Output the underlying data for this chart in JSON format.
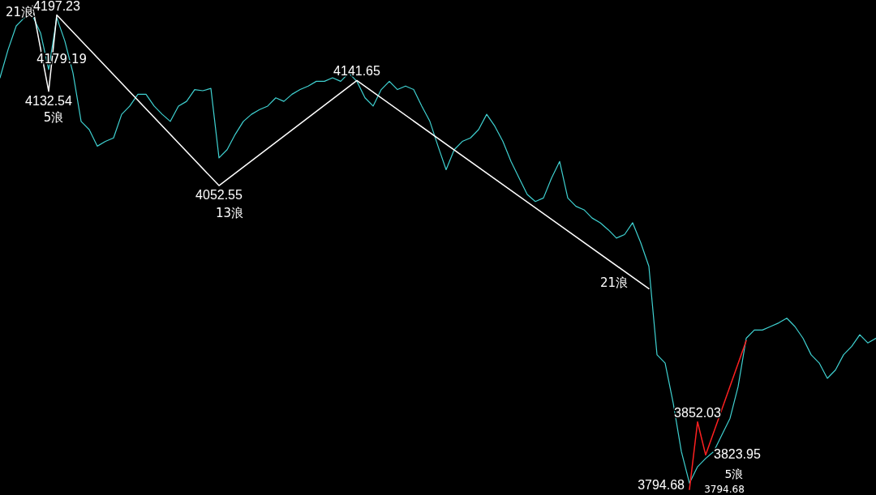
{
  "chart_data": {
    "type": "line",
    "categories": [
      null,
      null,
      null,
      null,
      null,
      null,
      null,
      null,
      null,
      null,
      null,
      null,
      null,
      null,
      null,
      null,
      null,
      null,
      null,
      null,
      null,
      null,
      null,
      null,
      null,
      null,
      null,
      null,
      null,
      null,
      null,
      null,
      null,
      null,
      null,
      null,
      null,
      null,
      null,
      null,
      null,
      null,
      null,
      null,
      null,
      null,
      null,
      null,
      null,
      null,
      null,
      null,
      null,
      null,
      null,
      null,
      null,
      null,
      null,
      null,
      null,
      null,
      null,
      null,
      null,
      null,
      null,
      null,
      null,
      null,
      null,
      null,
      null,
      null,
      null,
      null,
      null,
      null,
      null,
      null,
      null,
      null,
      null,
      null,
      null,
      null,
      null,
      null,
      null,
      null,
      null,
      null,
      null,
      null,
      null,
      null,
      null,
      null,
      null,
      null,
      null,
      null,
      null,
      null,
      null,
      null,
      null,
      null,
      null
    ],
    "ylim": [
      3790,
      4210
    ],
    "tick_labels": false,
    "grid": false,
    "legend": false,
    "marker": "none",
    "series": [
      {
        "color": "#3fd1d1",
        "values": [
          4144,
          4168,
          4188,
          4195,
          4197,
          4182,
          4151,
          4195,
          4175,
          4148,
          4107,
          4100,
          4086,
          4090,
          4093,
          4113,
          4120,
          4130,
          4130,
          4120,
          4113,
          4107,
          4120,
          4124,
          4134,
          4133,
          4135,
          4076,
          4083,
          4096,
          4107,
          4113,
          4117,
          4120,
          4127,
          4124,
          4130,
          4134,
          4137,
          4141,
          4141,
          4144,
          4141,
          4148,
          4141,
          4127,
          4120,
          4134,
          4141,
          4134,
          4137,
          4134,
          4120,
          4107,
          4086,
          4066,
          4083,
          4090,
          4093,
          4100,
          4113,
          4103,
          4090,
          4073,
          4059,
          4045,
          4039,
          4042,
          4059,
          4073,
          4042,
          4035,
          4032,
          4025,
          4021,
          4015,
          4008,
          4011,
          4021,
          4004,
          3984,
          3909,
          3902,
          3868,
          3827,
          3800,
          3814,
          3821,
          3827,
          3841,
          3855,
          3882,
          3923,
          3930,
          3930,
          3933,
          3936,
          3940,
          3933,
          3923,
          3909,
          3902,
          3889,
          3896,
          3909,
          3916,
          3926,
          3919,
          3923
        ]
      },
      {
        "color": "#ffffff",
        "values": [
          null,
          null,
          null,
          null,
          4205,
          null,
          4132.54,
          4197.23,
          null,
          null,
          null,
          null,
          null,
          null,
          null,
          null,
          null,
          null,
          null,
          null,
          null,
          null,
          null,
          null,
          null,
          null,
          null,
          4052.55,
          null,
          null,
          null,
          null,
          null,
          null,
          null,
          null,
          null,
          null,
          null,
          null,
          null,
          null,
          null,
          null,
          4141.65,
          null,
          null,
          null,
          null,
          null,
          null,
          null,
          null,
          null,
          null,
          null,
          null,
          null,
          null,
          null,
          null,
          null,
          null,
          null,
          null,
          null,
          null,
          null,
          null,
          null,
          null,
          null,
          null,
          null,
          null,
          null,
          null,
          null,
          null,
          null,
          3965,
          null,
          null,
          null,
          null,
          null,
          null,
          null,
          null,
          null,
          null,
          null,
          null,
          null,
          null,
          null,
          null,
          null,
          null,
          null,
          null,
          null,
          null,
          null,
          null,
          null,
          null,
          null,
          null
        ],
        "value_labels": [
          null,
          null,
          null,
          null,
          null,
          null,
          "4132.54",
          "4197.23",
          null,
          null,
          null,
          null,
          null,
          null,
          null,
          null,
          null,
          null,
          null,
          null,
          null,
          null,
          null,
          null,
          null,
          null,
          null,
          "4052.55",
          null,
          null,
          null,
          null,
          null,
          null,
          null,
          null,
          null,
          null,
          null,
          null,
          null,
          null,
          null,
          null,
          "4141.65",
          null,
          null,
          null,
          null,
          null,
          null,
          null,
          null,
          null,
          null,
          null,
          null,
          null,
          null,
          null,
          null,
          null,
          null,
          null,
          null,
          null,
          null,
          null,
          null,
          null,
          null,
          null,
          null,
          null,
          null,
          null,
          null,
          null,
          null,
          null,
          null,
          null,
          null,
          null,
          null,
          null,
          null,
          null,
          null,
          null,
          null,
          null,
          null,
          null,
          null,
          null,
          null,
          null,
          null,
          null,
          null,
          null,
          null,
          null,
          null,
          null,
          null,
          null,
          null
        ]
      },
      {
        "color": "#ff2020",
        "values": [
          null,
          null,
          null,
          null,
          null,
          null,
          null,
          null,
          null,
          null,
          null,
          null,
          null,
          null,
          null,
          null,
          null,
          null,
          null,
          null,
          null,
          null,
          null,
          null,
          null,
          null,
          null,
          null,
          null,
          null,
          null,
          null,
          null,
          null,
          null,
          null,
          null,
          null,
          null,
          null,
          null,
          null,
          null,
          null,
          null,
          null,
          null,
          null,
          null,
          null,
          null,
          null,
          null,
          null,
          null,
          null,
          null,
          null,
          null,
          null,
          null,
          null,
          null,
          null,
          null,
          null,
          null,
          null,
          null,
          null,
          null,
          null,
          null,
          null,
          null,
          null,
          null,
          null,
          null,
          null,
          null,
          null,
          null,
          null,
          null,
          3794.68,
          3852.03,
          3823.95,
          null,
          null,
          null,
          null,
          3921,
          null,
          null,
          null,
          null,
          null,
          null,
          null,
          null,
          null,
          null,
          null,
          null,
          null,
          null,
          null,
          null
        ],
        "value_labels": [
          null,
          null,
          null,
          null,
          null,
          null,
          null,
          null,
          null,
          null,
          null,
          null,
          null,
          null,
          null,
          null,
          null,
          null,
          null,
          null,
          null,
          null,
          null,
          null,
          null,
          null,
          null,
          null,
          null,
          null,
          null,
          null,
          null,
          null,
          null,
          null,
          null,
          null,
          null,
          null,
          null,
          null,
          null,
          null,
          null,
          null,
          null,
          null,
          null,
          null,
          null,
          null,
          null,
          null,
          null,
          null,
          null,
          null,
          null,
          null,
          null,
          null,
          null,
          null,
          null,
          null,
          null,
          null,
          null,
          null,
          null,
          null,
          null,
          null,
          null,
          null,
          null,
          null,
          null,
          null,
          null,
          null,
          null,
          null,
          null,
          "3794.68",
          "3852.03",
          "3823.95",
          null,
          null,
          null,
          null,
          null,
          null,
          null,
          null,
          null,
          null,
          null,
          null,
          null,
          null,
          null,
          null,
          null,
          null,
          null,
          null,
          null
        ]
      }
    ],
    "annotations": [
      "21浪",
      "5浪",
      "13浪",
      "21浪",
      "4179.19",
      "5浪",
      "3794.68"
    ]
  }
}
